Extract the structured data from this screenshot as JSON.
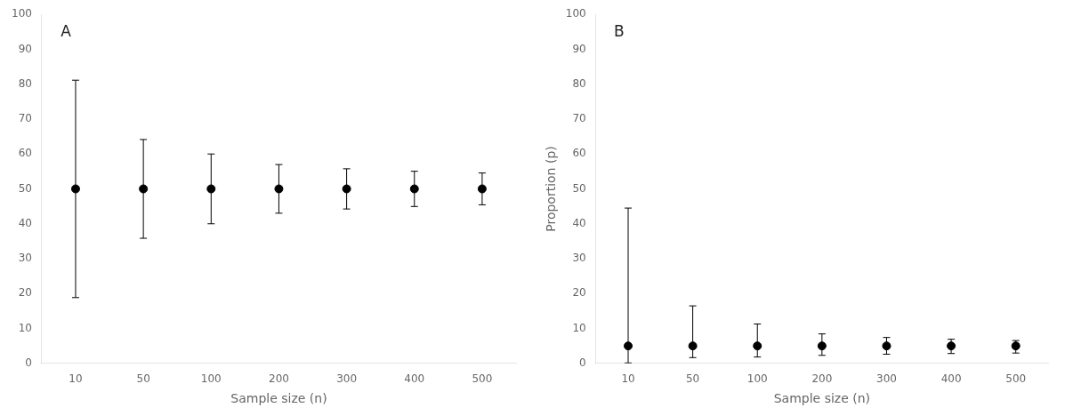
{
  "chart_data": [
    {
      "type": "scatter",
      "annotation": "A",
      "categories": [
        "10",
        "50",
        "100",
        "200",
        "300",
        "400",
        "500"
      ],
      "values": [
        50,
        50,
        50,
        50,
        50,
        50,
        50
      ],
      "upper_ci": [
        81.15,
        64.15,
        60.0,
        56.97,
        55.76,
        55.05,
        54.56
      ],
      "lower_ci": [
        18.85,
        35.85,
        40.0,
        43.03,
        44.24,
        44.95,
        45.44
      ],
      "color": "#000000",
      "xlabel": "Sample size (n)",
      "ylim": [
        0,
        100
      ],
      "yticks": [
        0,
        10,
        20,
        30,
        40,
        50,
        60,
        70,
        80,
        90,
        100
      ],
      "grid": false
    },
    {
      "type": "scatter",
      "annotation": "B",
      "categories": [
        "10",
        "50",
        "100",
        "200",
        "300",
        "400",
        "500"
      ],
      "values": [
        5,
        5,
        5,
        5,
        5,
        5,
        5
      ],
      "upper_ci": [
        44.5,
        16.48,
        11.29,
        8.45,
        7.42,
        6.91,
        6.55
      ],
      "lower_ci": [
        0.13,
        1.66,
        1.83,
        2.3,
        2.63,
        2.83,
        2.96
      ],
      "color": "#000000",
      "xlabel": "Sample size (n)",
      "ylabel": "Proportion (p)",
      "ylim": [
        0,
        100
      ],
      "yticks": [
        0,
        10,
        20,
        30,
        40,
        50,
        60,
        70,
        80,
        90,
        100
      ],
      "grid": false
    }
  ]
}
